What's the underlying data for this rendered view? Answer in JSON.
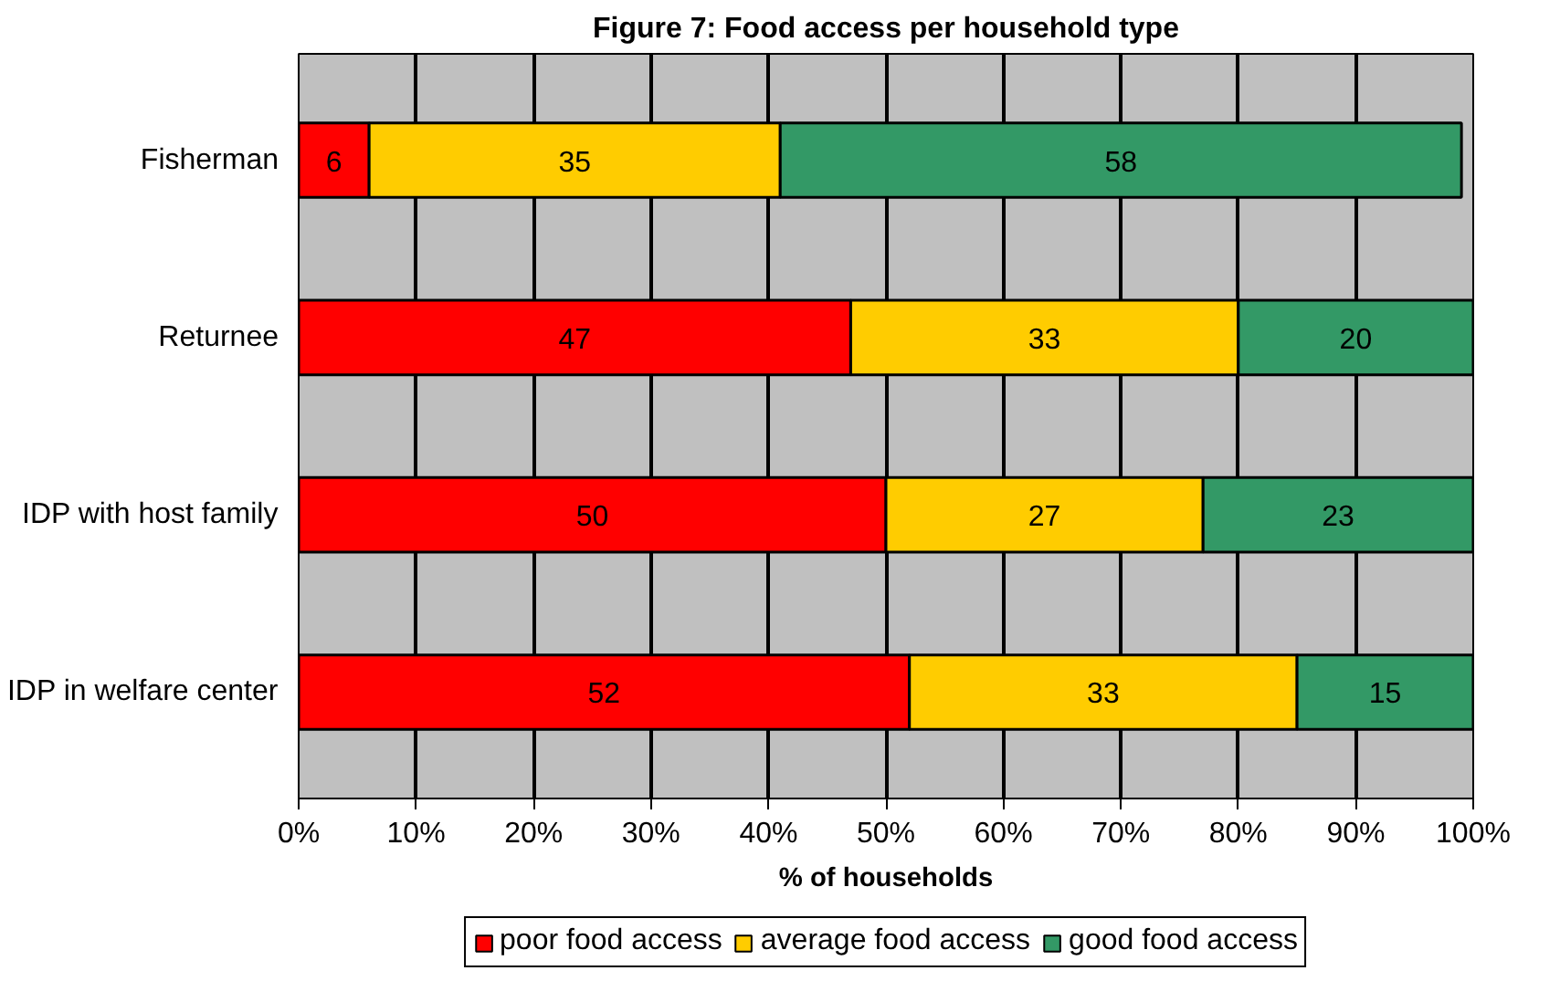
{
  "chart_data": {
    "type": "bar",
    "orientation": "horizontal",
    "stacked": true,
    "title": "Figure 7: Food access per household type",
    "xlabel": "% of households",
    "categories": [
      "Fisherman",
      "Returnee",
      "IDP with host family",
      "IDP in welfare center"
    ],
    "series": [
      {
        "name": "poor food access",
        "color": "#ff0000",
        "values": [
          6,
          47,
          50,
          52
        ]
      },
      {
        "name": "average food access",
        "color": "#ffcc00",
        "values": [
          35,
          33,
          27,
          33
        ]
      },
      {
        "name": "good food access",
        "color": "#339966",
        "values": [
          58,
          20,
          23,
          15
        ]
      }
    ],
    "xlim": [
      0,
      100
    ],
    "xticks": [
      {
        "value": 0,
        "label": "0%"
      },
      {
        "value": 10,
        "label": "10%"
      },
      {
        "value": 20,
        "label": "20%"
      },
      {
        "value": 30,
        "label": "30%"
      },
      {
        "value": 40,
        "label": "40%"
      },
      {
        "value": 50,
        "label": "50%"
      },
      {
        "value": 60,
        "label": "60%"
      },
      {
        "value": 70,
        "label": "70%"
      },
      {
        "value": 80,
        "label": "80%"
      },
      {
        "value": 90,
        "label": "90%"
      },
      {
        "value": 100,
        "label": "100%"
      }
    ],
    "grid": "x",
    "legend": "bottom",
    "data_labels": true
  }
}
